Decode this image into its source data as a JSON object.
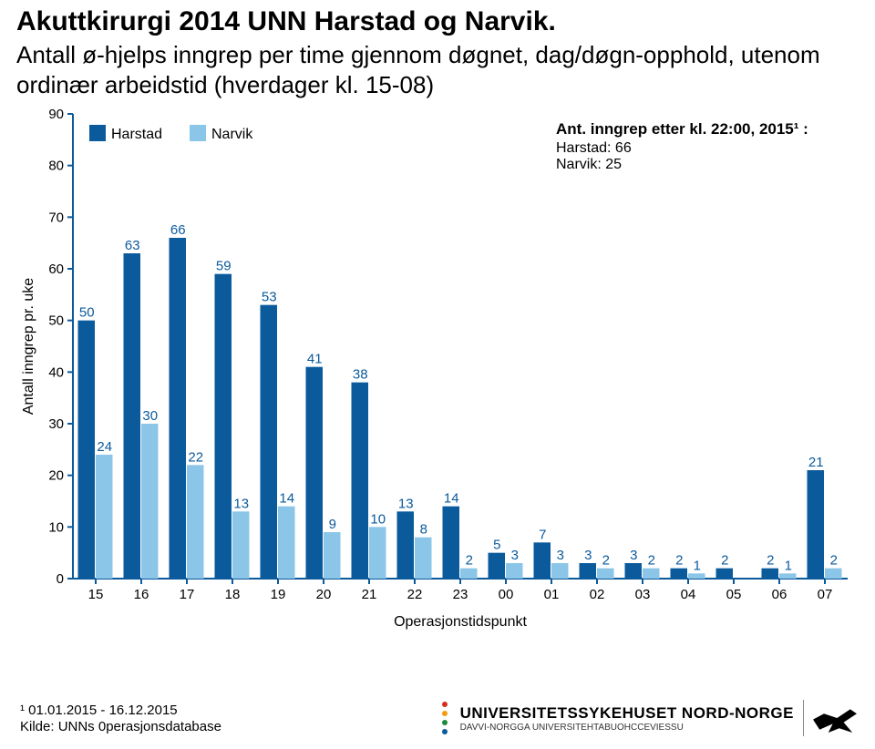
{
  "title": "Akuttkirurgi 2014 UNN Harstad og Narvik.",
  "subtitle": "Antall ø-hjelps inngrep per time gjennom døgnet, dag/døgn-opphold, utenom ordinær arbeidstid (hverdager kl. 15-08)",
  "chart": {
    "type": "bar",
    "categories": [
      "15",
      "16",
      "17",
      "18",
      "19",
      "20",
      "21",
      "22",
      "23",
      "00",
      "01",
      "02",
      "03",
      "04",
      "05",
      "06",
      "07"
    ],
    "series": [
      {
        "name": "Harstad",
        "color": "#0a5a9c",
        "values": [
          50,
          63,
          66,
          59,
          53,
          41,
          38,
          13,
          14,
          5,
          7,
          3,
          3,
          2,
          2,
          2,
          21
        ]
      },
      {
        "name": "Narvik",
        "color": "#8bc5e8",
        "values": [
          24,
          30,
          22,
          13,
          14,
          9,
          10,
          8,
          2,
          3,
          3,
          2,
          2,
          1,
          null,
          1,
          2
        ]
      }
    ],
    "ylim": [
      0,
      90
    ],
    "ytick_step": 10,
    "ylabel": "Antall inngrep pr. uke",
    "xlabel": "Operasjonstidspunkt",
    "legend": {
      "items": [
        "Harstad",
        "Narvik"
      ]
    },
    "note": {
      "title": "Ant. inngrep etter kl. 22:00, 2015¹ :",
      "lines": [
        "Harstad: 66",
        "Narvik: 25"
      ]
    },
    "axis_color": "#0a5a9c",
    "datalabel_color": "#0a5a9c",
    "datalabel_fontsize": 15,
    "bar_group_width": 0.78,
    "plot_bg": "#ffffff"
  },
  "footer": {
    "line1": "¹ 01.01.2015 - 16.12.2015",
    "line2": "Kilde: UNNs 0perasjonsdatabase"
  },
  "logo": {
    "name": "UNIVERSITETSSYKEHUSET NORD-NORGE",
    "sub": "DAVVI-NORGGA UNIVERSITEHTABUOHCCEVIESSU",
    "dot_colors": [
      "#d72b1f",
      "#f39c12",
      "#1d8a3a",
      "#0a5a9c"
    ]
  }
}
